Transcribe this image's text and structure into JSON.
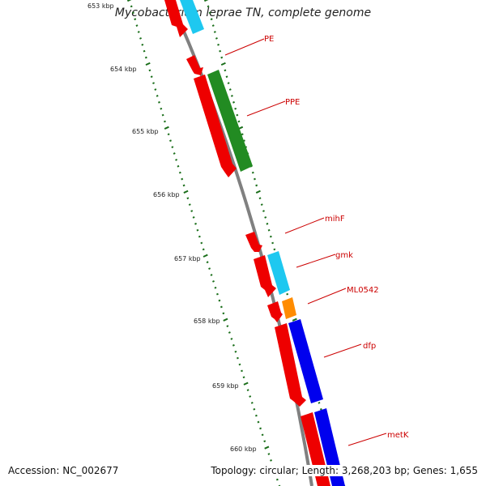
{
  "title": "Mycobacterium leprae TN, complete genome",
  "accession_text": "Accession: NC_002677",
  "topology_text": "Topology: circular; Length: 3,268,203 bp; Genes: 1,655",
  "kbp_labels": [
    "653 kbp",
    "654 kbp",
    "655 kbp",
    "656 kbp",
    "657 kbp",
    "658 kbp",
    "659 kbp",
    "660 kbp"
  ],
  "gene_labels": [
    "PE",
    "PPE",
    "mihF",
    "gmk",
    "ML0542",
    "dfp",
    "metK"
  ],
  "colors": {
    "backbone": "#808080",
    "tick": "#1a6e1a",
    "cds_red": "#ee0000",
    "green": "#228b22",
    "cyan": "#1ec8f0",
    "orange": "#ff8c00",
    "blue": "#0000ee",
    "label": "#cc0000"
  }
}
